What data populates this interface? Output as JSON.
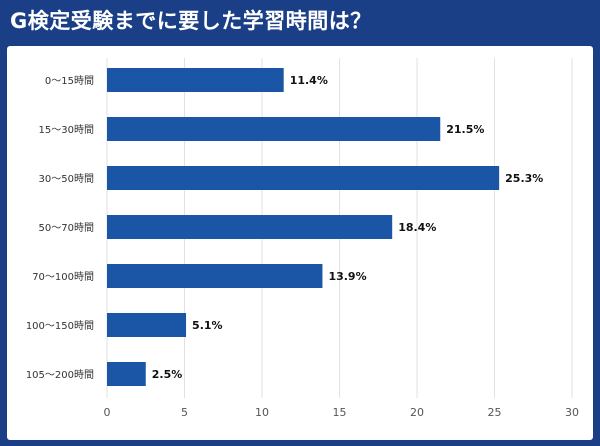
{
  "title": "G検定受験までに要した学習時間は？",
  "colors": {
    "bar": "#1b55a6",
    "grid": "#e2e2e2",
    "frame": "#1b3f86"
  },
  "chart_data": {
    "type": "bar",
    "orientation": "horizontal",
    "categories": [
      "0〜15時間",
      "15〜30時間",
      "30〜50時間",
      "50〜70時間",
      "70〜100時間",
      "100〜150時間",
      "105〜200時間"
    ],
    "values": [
      11.4,
      21.5,
      25.3,
      18.4,
      13.9,
      5.1,
      2.5
    ],
    "value_labels": [
      "11.4%",
      "21.5%",
      "25.3%",
      "18.4%",
      "13.9%",
      "5.1%",
      "2.5%"
    ],
    "xlim": [
      0,
      30
    ],
    "x_ticks": [
      0,
      5,
      10,
      15,
      20,
      25,
      30
    ],
    "grid": true,
    "legend": "none"
  }
}
